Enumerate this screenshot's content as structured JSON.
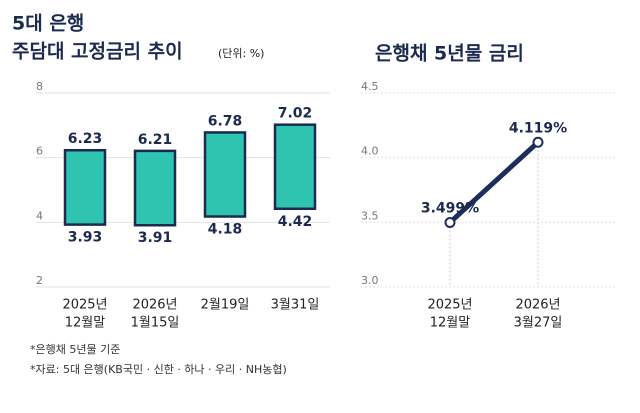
{
  "chart_data": [
    {
      "type": "range_bar",
      "title": "5대 은행",
      "subtitle": "주담대 고정금리 추이",
      "unit": "(단위: %)",
      "categories": [
        [
          "2025년",
          "12월말"
        ],
        [
          "2026년",
          "1월15일"
        ],
        [
          "2월19일"
        ],
        [
          "3월31일"
        ]
      ],
      "lows": [
        3.93,
        3.91,
        4.18,
        4.42
      ],
      "highs": [
        6.23,
        6.21,
        6.78,
        7.02
      ],
      "color": "#2ec4b0",
      "stroke": "#1b2a4e",
      "ylim": [
        2,
        8
      ],
      "yticks": [
        2,
        4,
        6,
        8
      ],
      "grid": true
    },
    {
      "type": "line",
      "title": "은행채 5년물 금리",
      "categories": [
        [
          "2025년",
          "12월말"
        ],
        [
          "2026년",
          "3월27일"
        ]
      ],
      "values": [
        3.499,
        4.119
      ],
      "value_labels": [
        "3.499%",
        "4.119%"
      ],
      "color": "#1b2f5a",
      "ylim": [
        3.0,
        4.5
      ],
      "yticks": [
        {
          "value": 3.0,
          "label": "3.0"
        },
        3.5,
        {
          "value": 4.0,
          "label": "4.0"
        },
        4.5
      ],
      "grid": true
    }
  ],
  "notes": [
    "*은행채 5년물 기준",
    "*자료: 5대 은행(KB국민 · 신한 · 하나 · 우리 · NH농협)"
  ]
}
